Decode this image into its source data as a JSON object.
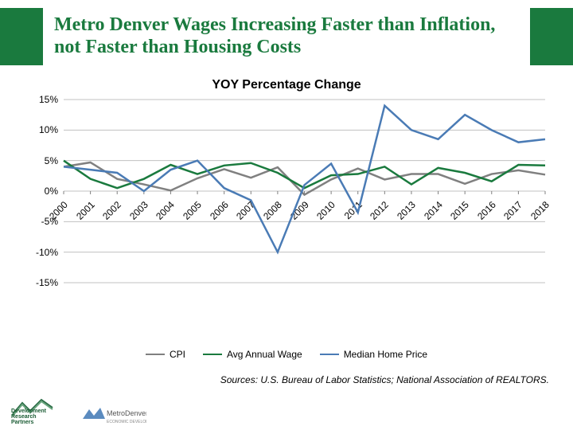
{
  "title": "Metro Denver Wages Increasing Faster than Inflation, not Faster than Housing Costs",
  "sources": "Sources: U.S. Bureau of Labor Statistics; National Association of REALTORS.",
  "chart": {
    "type": "line",
    "title": "YOY Percentage Change",
    "title_fontsize": 16,
    "label_fontsize": 12,
    "background_color": "#ffffff",
    "grid_color": "#c0c0c0",
    "axis_color": "#808080",
    "line_width": 2.5,
    "ylim": [
      -15,
      15
    ],
    "ytick_step": 5,
    "yticks": [
      15,
      10,
      5,
      0,
      -5,
      -10,
      -15
    ],
    "ytick_labels": [
      "15%",
      "10%",
      "5%",
      "0%",
      "-5%",
      "-10%",
      "-15%"
    ],
    "x_categories": [
      "2000",
      "2001",
      "2002",
      "2003",
      "2004",
      "2005",
      "2006",
      "2007",
      "2008",
      "2009",
      "2010",
      "2011",
      "2012",
      "2013",
      "2014",
      "2015",
      "2016",
      "2017",
      "2018"
    ],
    "x_label_rotation": -45,
    "legend": [
      "CPI",
      "Avg Annual Wage",
      "Median Home Price"
    ],
    "series": [
      {
        "name": "CPI",
        "color": "#808080",
        "values": [
          4.0,
          4.7,
          2.0,
          1.1,
          0.1,
          2.1,
          3.6,
          2.2,
          3.9,
          -0.6,
          1.9,
          3.7,
          1.9,
          2.8,
          2.8,
          1.2,
          2.8,
          3.4,
          2.7
        ]
      },
      {
        "name": "Avg Annual Wage",
        "color": "#1a7a3e",
        "values": [
          5.0,
          2.0,
          0.5,
          2.0,
          4.3,
          2.8,
          4.2,
          4.6,
          3.0,
          0.5,
          2.6,
          2.8,
          4.0,
          1.1,
          3.8,
          3.0,
          1.6,
          4.3,
          4.2
        ]
      },
      {
        "name": "Median Home Price",
        "color": "#4a7bb5",
        "values": [
          4.0,
          3.5,
          3.0,
          0.0,
          3.5,
          5.0,
          0.5,
          -1.5,
          -10.0,
          1.0,
          4.5,
          -3.5,
          14.0,
          10.0,
          8.5,
          12.5,
          10.0,
          8.0,
          8.5
        ]
      }
    ]
  },
  "logos": {
    "drp": "Development\nResearch\nPartners",
    "metro": "MetroDenver"
  }
}
